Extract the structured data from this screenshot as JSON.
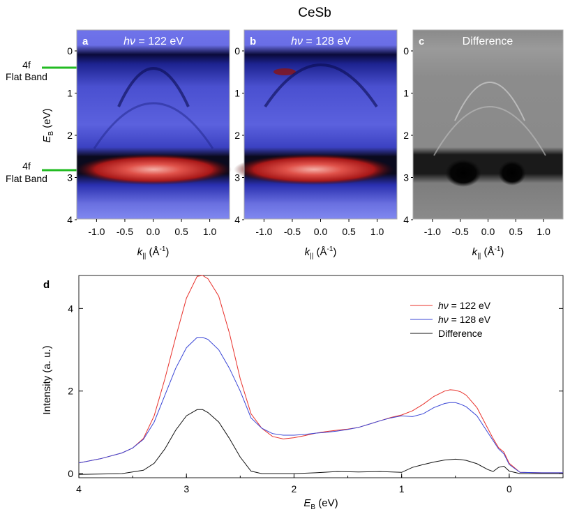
{
  "figure_title": "CeSb",
  "side_labels": {
    "upper": [
      "4f",
      "Flat Band"
    ],
    "lower": [
      "4f",
      "Flat Band"
    ],
    "arrow_color": "#22bb22"
  },
  "panels": [
    {
      "letter": "a",
      "title_italic": "hν",
      "title_rest": " = 122 eV",
      "colormap": "blue-white-red"
    },
    {
      "letter": "b",
      "title_italic": "hν",
      "title_rest": " = 128 eV",
      "colormap": "blue-white-red"
    },
    {
      "letter": "c",
      "title_italic": "",
      "title_rest": "Difference",
      "colormap": "gray"
    }
  ],
  "map_axes": {
    "y_symbol": "E",
    "y_sub": "B",
    "y_unit": " (eV)",
    "y_ticks": [
      "0",
      "1",
      "2",
      "3",
      "4"
    ],
    "x_symbol": "k",
    "x_sub": "||",
    "x_unit_pre": " (Å",
    "x_unit_sup": "-1",
    "x_unit_post": ")",
    "x_ticks": [
      "-1.0",
      "-0.5",
      "0.0",
      "0.5",
      "1.0"
    ]
  },
  "chart_data": [
    {
      "type": "heatmap",
      "panel": "a",
      "title": "hν = 122 eV",
      "xlabel": "k|| (Å-1)",
      "ylabel": "EB (eV)",
      "xlim": [
        -1.35,
        1.35
      ],
      "ylim": [
        4,
        0
      ],
      "features": [
        {
          "name": "4f flat band",
          "EB": 0.4
        },
        {
          "name": "4f flat band",
          "EB": 2.9
        }
      ]
    },
    {
      "type": "heatmap",
      "panel": "b",
      "title": "hν = 128 eV",
      "xlabel": "k|| (Å-1)",
      "ylabel": "EB (eV)",
      "xlim": [
        -1.35,
        1.35
      ],
      "ylim": [
        4,
        0
      ]
    },
    {
      "type": "heatmap",
      "panel": "c",
      "title": "Difference",
      "xlabel": "k|| (Å-1)",
      "ylabel": "EB (eV)",
      "xlim": [
        -1.35,
        1.35
      ],
      "ylim": [
        4,
        0
      ]
    },
    {
      "type": "line",
      "panel": "d",
      "xlabel": "EB (eV)",
      "ylabel": "Intensity (a. u.)",
      "xlim": [
        4.0,
        -0.5
      ],
      "ylim": [
        -0.1,
        4.8
      ],
      "x_ticks": [
        "4",
        "3",
        "2",
        "1",
        "0"
      ],
      "y_ticks": [
        "0",
        "2",
        "4"
      ],
      "legend_position": "top-right",
      "series": [
        {
          "name": "hν = 122 eV",
          "color": "#e8302a",
          "x": [
            4.0,
            3.8,
            3.6,
            3.5,
            3.4,
            3.3,
            3.2,
            3.1,
            3.0,
            2.9,
            2.85,
            2.8,
            2.7,
            2.6,
            2.5,
            2.4,
            2.3,
            2.2,
            2.1,
            2.0,
            1.9,
            1.8,
            1.7,
            1.6,
            1.5,
            1.4,
            1.3,
            1.2,
            1.1,
            1.0,
            0.9,
            0.8,
            0.7,
            0.6,
            0.55,
            0.5,
            0.45,
            0.4,
            0.3,
            0.2,
            0.15,
            0.1,
            0.05,
            0.0,
            -0.1,
            -0.3,
            -0.5
          ],
          "y": [
            0.26,
            0.36,
            0.5,
            0.62,
            0.85,
            1.4,
            2.3,
            3.3,
            4.25,
            4.78,
            4.8,
            4.72,
            4.3,
            3.4,
            2.3,
            1.45,
            1.1,
            0.9,
            0.84,
            0.87,
            0.92,
            0.98,
            1.02,
            1.05,
            1.08,
            1.12,
            1.2,
            1.28,
            1.36,
            1.42,
            1.52,
            1.68,
            1.87,
            2.0,
            2.03,
            2.02,
            1.98,
            1.9,
            1.6,
            1.1,
            0.85,
            0.63,
            0.52,
            0.25,
            0.03,
            0.02,
            0.02
          ]
        },
        {
          "name": "hν = 128 eV",
          "color": "#3a46d6",
          "x": [
            4.0,
            3.8,
            3.6,
            3.5,
            3.4,
            3.3,
            3.2,
            3.1,
            3.0,
            2.9,
            2.85,
            2.8,
            2.7,
            2.6,
            2.5,
            2.4,
            2.3,
            2.2,
            2.1,
            2.0,
            1.9,
            1.8,
            1.7,
            1.6,
            1.5,
            1.4,
            1.3,
            1.2,
            1.1,
            1.0,
            0.9,
            0.8,
            0.7,
            0.6,
            0.55,
            0.5,
            0.45,
            0.4,
            0.3,
            0.2,
            0.15,
            0.1,
            0.05,
            0.0,
            -0.1,
            -0.3,
            -0.5
          ],
          "y": [
            0.26,
            0.36,
            0.5,
            0.62,
            0.83,
            1.25,
            1.9,
            2.55,
            3.05,
            3.3,
            3.3,
            3.25,
            3.0,
            2.55,
            2.0,
            1.35,
            1.1,
            0.97,
            0.93,
            0.93,
            0.95,
            0.98,
            1.0,
            1.03,
            1.07,
            1.12,
            1.2,
            1.28,
            1.35,
            1.4,
            1.38,
            1.45,
            1.6,
            1.7,
            1.72,
            1.72,
            1.68,
            1.62,
            1.4,
            1.0,
            0.8,
            0.6,
            0.48,
            0.22,
            0.03,
            0.02,
            0.02
          ]
        },
        {
          "name": "Difference",
          "color": "#111111",
          "x": [
            4.0,
            3.6,
            3.4,
            3.3,
            3.2,
            3.1,
            3.0,
            2.9,
            2.85,
            2.8,
            2.7,
            2.6,
            2.5,
            2.4,
            2.3,
            2.2,
            2.1,
            2.0,
            1.8,
            1.6,
            1.4,
            1.2,
            1.0,
            0.9,
            0.8,
            0.7,
            0.6,
            0.5,
            0.45,
            0.4,
            0.3,
            0.2,
            0.15,
            0.1,
            0.05,
            0.0,
            -0.1,
            -0.5
          ],
          "y": [
            -0.02,
            0.0,
            0.08,
            0.25,
            0.6,
            1.05,
            1.4,
            1.55,
            1.55,
            1.48,
            1.25,
            0.85,
            0.4,
            0.06,
            0.0,
            0.0,
            0.0,
            0.0,
            0.02,
            0.05,
            0.04,
            0.05,
            0.03,
            0.15,
            0.22,
            0.28,
            0.33,
            0.35,
            0.34,
            0.32,
            0.24,
            0.1,
            0.05,
            0.15,
            0.18,
            0.06,
            0.0,
            0.0
          ]
        }
      ]
    }
  ]
}
